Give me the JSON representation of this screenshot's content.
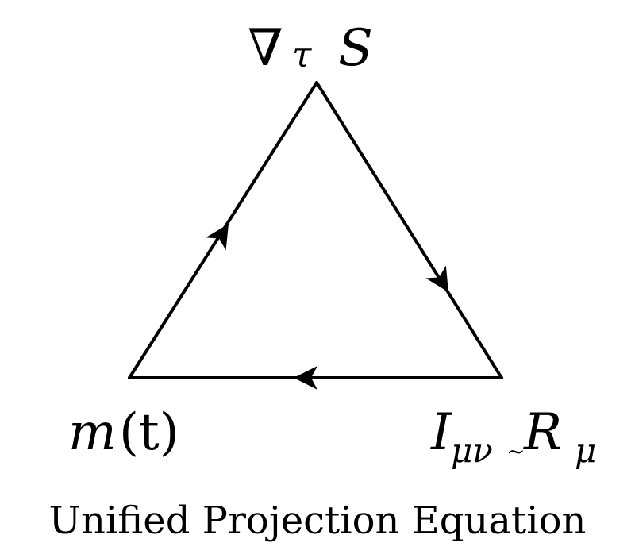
{
  "diagram": {
    "nodes": {
      "top": {
        "nabla": "∇",
        "sub": "τ",
        "main": "S"
      },
      "left": {
        "main": "m",
        "arg": "(t)"
      },
      "right": {
        "I": "I",
        "I_sub": "μν",
        "tilde": "~",
        "R": "R",
        "R_sub": "μ"
      }
    },
    "caption": "Unified Projection Equation",
    "edges": [
      {
        "from": "left",
        "to": "top",
        "arrow": "toward-top"
      },
      {
        "from": "top",
        "to": "right",
        "arrow": "toward-right"
      },
      {
        "from": "right",
        "to": "left",
        "arrow": "toward-left"
      }
    ],
    "colors": {
      "stroke": "#000000",
      "background": "#ffffff"
    }
  }
}
